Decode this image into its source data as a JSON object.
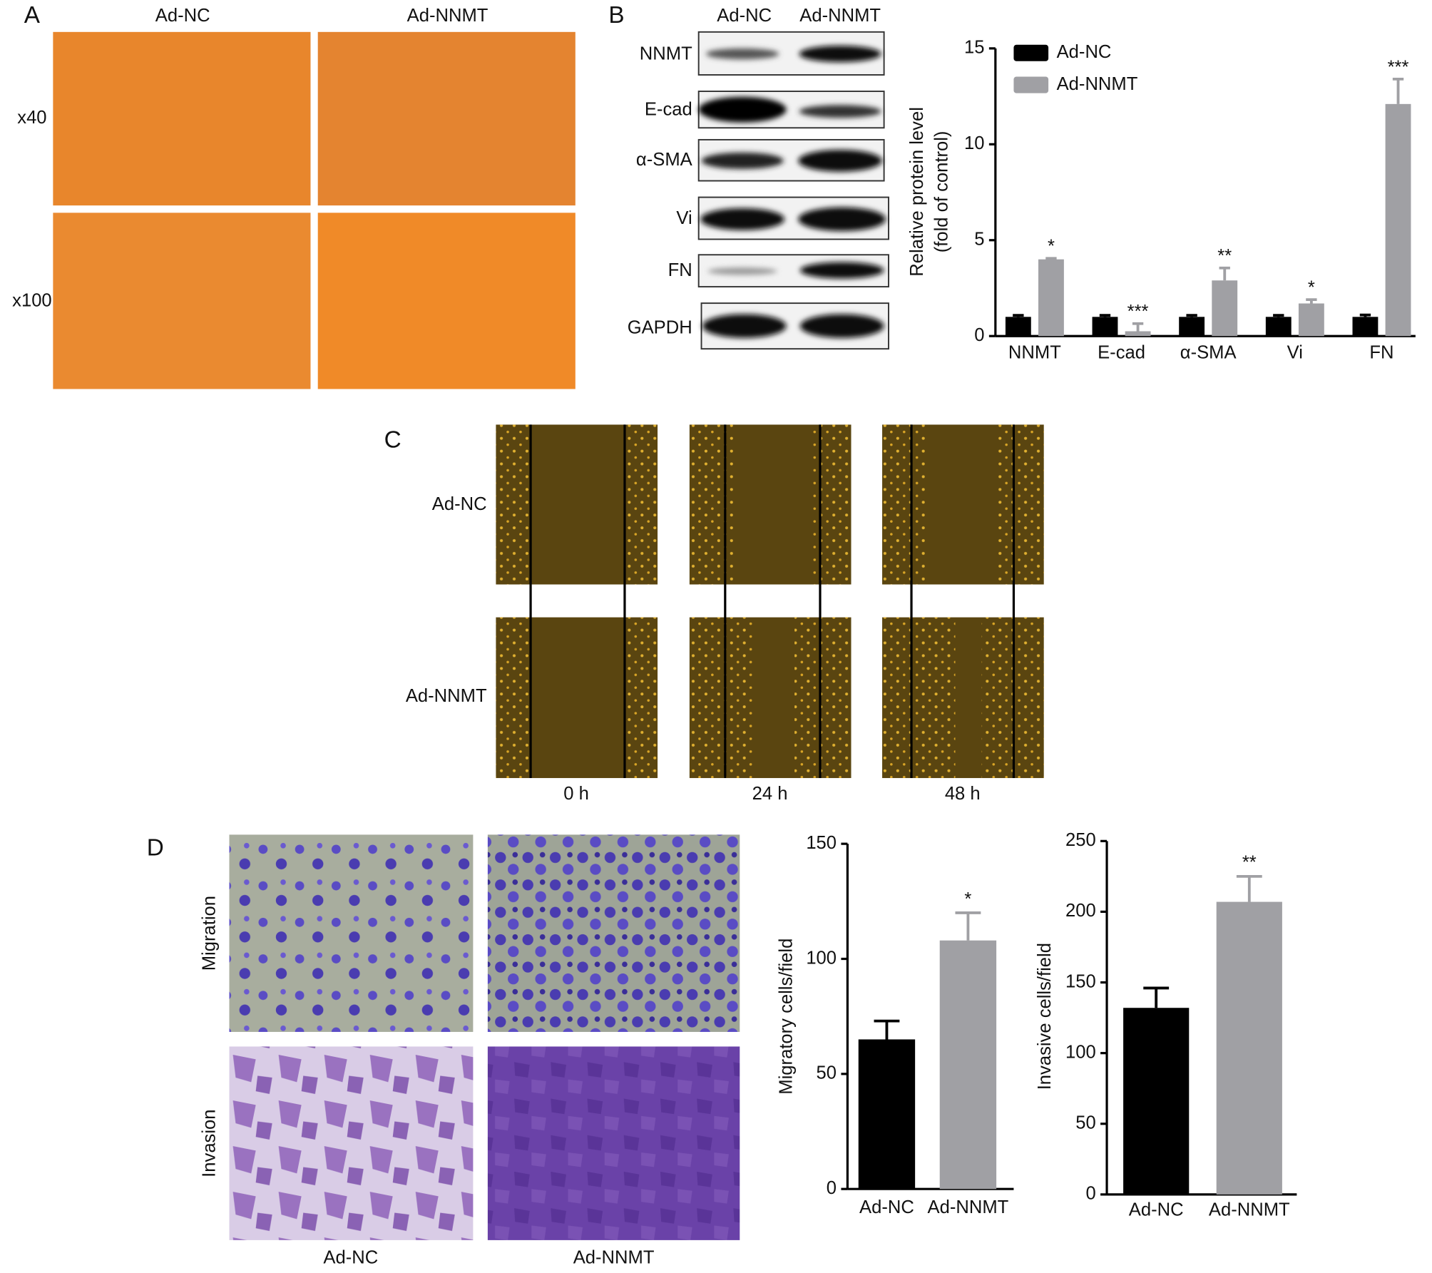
{
  "panels": {
    "A": {
      "label": "A",
      "columns": [
        "Ad-NC",
        "Ad-NNMT"
      ],
      "rows": [
        "x40",
        "x100"
      ]
    },
    "B": {
      "label": "B",
      "columns": [
        "Ad-NC",
        "Ad-NNMT"
      ],
      "blots": [
        "NNMT",
        "E-cad",
        "α-SMA",
        "Vi",
        "FN",
        "GAPDH"
      ]
    },
    "C": {
      "label": "C",
      "rows": [
        "Ad-NC",
        "Ad-NNMT"
      ],
      "columns": [
        "0 h",
        "24 h",
        "48 h"
      ]
    },
    "D": {
      "label": "D",
      "rows": [
        "Migration",
        "Invasion"
      ],
      "columns": [
        "Ad-NC",
        "Ad-NNMT"
      ]
    }
  },
  "chart_data": [
    {
      "type": "bar",
      "y_label": [
        "Relative protein level",
        "(fold of control)"
      ],
      "categories": [
        "NNMT",
        "E-cad",
        "α-SMA",
        "Vi",
        "FN"
      ],
      "series": [
        {
          "name": "Ad-NC",
          "color": "#000000",
          "values": [
            1,
            1,
            1,
            1,
            1
          ],
          "errors": [
            0.08,
            0.08,
            0.08,
            0.08,
            0.1
          ]
        },
        {
          "name": "Ad-NNMT",
          "color": "#a0a0a4",
          "values": [
            4.0,
            0.25,
            2.9,
            1.7,
            12.1
          ],
          "errors": [
            0.05,
            0.4,
            0.65,
            0.2,
            1.3
          ],
          "annotations": [
            "*",
            "***",
            "**",
            "*",
            "***"
          ]
        }
      ],
      "ylim": [
        0,
        15
      ],
      "yticks": [
        0,
        5,
        10,
        15
      ],
      "legend": "top-left"
    },
    {
      "type": "bar",
      "y_label": [
        "Migratory cells/field"
      ],
      "categories": [
        "Ad-NC",
        "Ad-NNMT"
      ],
      "values": [
        65,
        108
      ],
      "errors": [
        8,
        12
      ],
      "colors": [
        "#000000",
        "#a0a0a4"
      ],
      "annotations": [
        null,
        "*"
      ],
      "ylim": [
        0,
        150
      ],
      "yticks": [
        0,
        50,
        100,
        150
      ]
    },
    {
      "type": "bar",
      "y_label": [
        "Invasive cells/field"
      ],
      "categories": [
        "Ad-NC",
        "Ad-NNMT"
      ],
      "values": [
        132,
        207
      ],
      "errors": [
        14,
        18
      ],
      "colors": [
        "#000000",
        "#a0a0a4"
      ],
      "annotations": [
        null,
        "**"
      ],
      "ylim": [
        0,
        250
      ],
      "yticks": [
        0,
        50,
        100,
        150,
        200,
        250
      ]
    }
  ]
}
